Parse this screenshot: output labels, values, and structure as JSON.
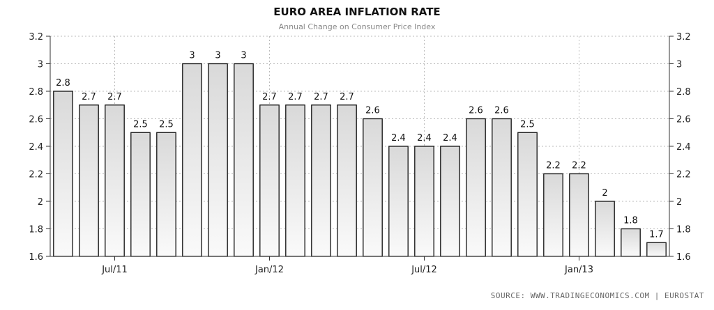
{
  "title": "EURO AREA INFLATION RATE",
  "subtitle": "Annual Change on Consumer Price Index",
  "source": "SOURCE:  WWW.TRADINGECONOMICS.COM  |  EUROSTAT",
  "colors": {
    "bar_fill_top": "#d9d9d9",
    "bar_fill_bottom": "#fafafa",
    "bar_stroke": "#111111",
    "grid": "#bbbbbb",
    "axis": "#333333"
  },
  "chart_data": {
    "type": "bar",
    "categories": [
      "2011-05",
      "2011-06",
      "2011-07",
      "2011-08",
      "2011-09",
      "2011-10",
      "2011-11",
      "2011-12",
      "2012-01",
      "2012-02",
      "2012-03",
      "2012-04",
      "2012-05",
      "2012-06",
      "2012-07",
      "2012-08",
      "2012-09",
      "2012-10",
      "2012-11",
      "2012-12",
      "2013-01",
      "2013-02",
      "2013-03",
      "2013-04"
    ],
    "values": [
      2.8,
      2.7,
      2.7,
      2.5,
      2.5,
      3,
      3,
      3,
      2.7,
      2.7,
      2.7,
      2.7,
      2.6,
      2.4,
      2.4,
      2.4,
      2.6,
      2.6,
      2.5,
      2.2,
      2.2,
      2,
      1.8,
      1.7
    ],
    "data_labels": [
      "2.8",
      "2.7",
      "2.7",
      "2.5",
      "2.5",
      "3",
      "3",
      "3",
      "2.7",
      "2.7",
      "2.7",
      "2.7",
      "2.6",
      "2.4",
      "2.4",
      "2.4",
      "2.6",
      "2.6",
      "2.5",
      "2.2",
      "2.2",
      "2",
      "1.8",
      "1.7"
    ],
    "ylim": [
      1.6,
      3.2
    ],
    "y_ticks": [
      1.6,
      1.8,
      2,
      2.2,
      2.4,
      2.6,
      2.8,
      3,
      3.2
    ],
    "y_tick_labels": [
      "1.6",
      "1.8",
      "2",
      "2.2",
      "2.4",
      "2.6",
      "2.8",
      "3",
      "3.2"
    ],
    "y_axis_sides": [
      "left",
      "right"
    ],
    "x_tick_labels": [
      {
        "category": "2011-07",
        "label": "Jul/11"
      },
      {
        "category": "2012-01",
        "label": "Jan/12"
      },
      {
        "category": "2012-07",
        "label": "Jul/12"
      },
      {
        "category": "2013-01",
        "label": "Jan/13"
      }
    ],
    "xlabel": "",
    "ylabel": "",
    "grid": true,
    "legend": false
  }
}
